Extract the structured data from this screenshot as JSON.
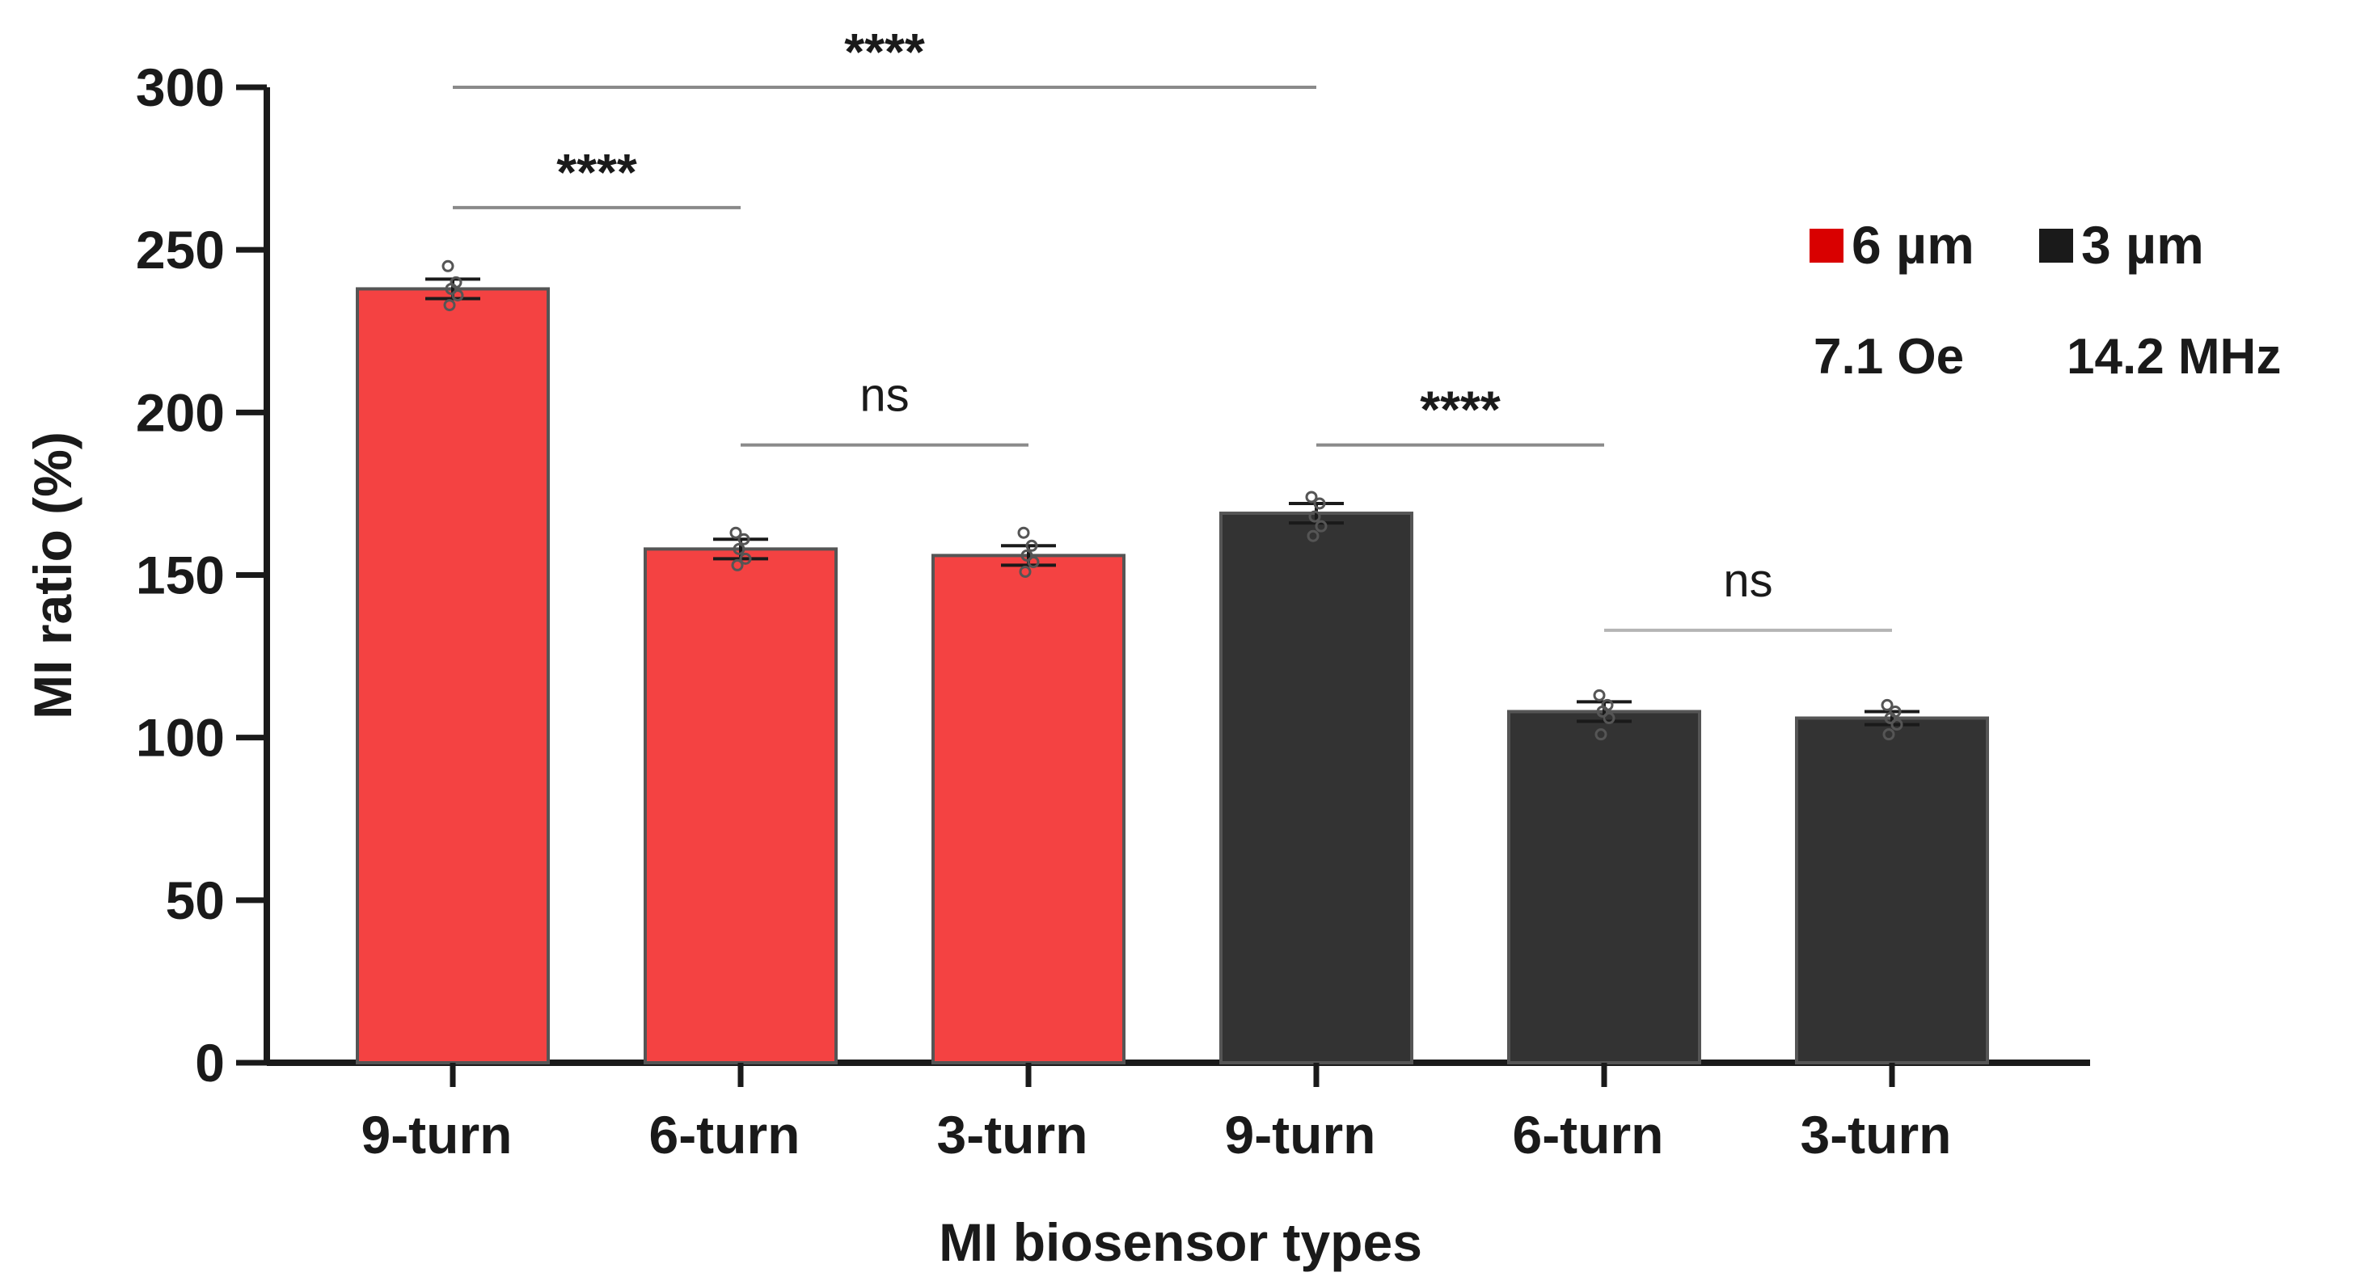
{
  "chart_data": {
    "type": "bar",
    "title": "",
    "xlabel": "MI biosensor types",
    "ylabel": "MI ratio (%)",
    "ylim": [
      0,
      300
    ],
    "yticks": [
      0,
      50,
      100,
      150,
      200,
      250,
      300
    ],
    "grid": false,
    "categories": [
      "9-turn",
      "6-turn",
      "3-turn",
      "9-turn",
      "6-turn",
      "3-turn"
    ],
    "values": [
      238,
      158,
      156,
      169,
      108,
      106
    ],
    "errors": [
      3,
      3,
      3,
      3,
      3,
      2
    ],
    "groups": [
      0,
      0,
      0,
      1,
      1,
      1
    ],
    "points": [
      [
        245,
        240,
        238,
        236,
        233
      ],
      [
        163,
        161,
        158,
        155,
        153
      ],
      [
        163,
        159,
        156,
        154,
        151
      ],
      [
        174,
        172,
        168,
        165,
        162
      ],
      [
        113,
        110,
        108,
        106,
        101
      ],
      [
        110,
        108,
        106,
        104,
        101
      ]
    ],
    "series": [
      {
        "name": "6 µm",
        "color": "#f44242"
      },
      {
        "name": "3 µm",
        "color": "#333333"
      }
    ],
    "legend_swatch_colors": [
      "#d90000",
      "#1a1a1a"
    ],
    "legend_position": "top-right",
    "condition_text": [
      "7.1 Oe",
      "14.2 MHz"
    ],
    "significance": [
      {
        "from": 0,
        "to": 3,
        "label": "****",
        "level": 300
      },
      {
        "from": 0,
        "to": 1,
        "label": "****",
        "level": 263
      },
      {
        "from": 1,
        "to": 2,
        "label": "ns",
        "level": 190
      },
      {
        "from": 3,
        "to": 4,
        "label": "****",
        "level": 190
      },
      {
        "from": 4,
        "to": 5,
        "label": "ns",
        "level": 133
      }
    ]
  }
}
